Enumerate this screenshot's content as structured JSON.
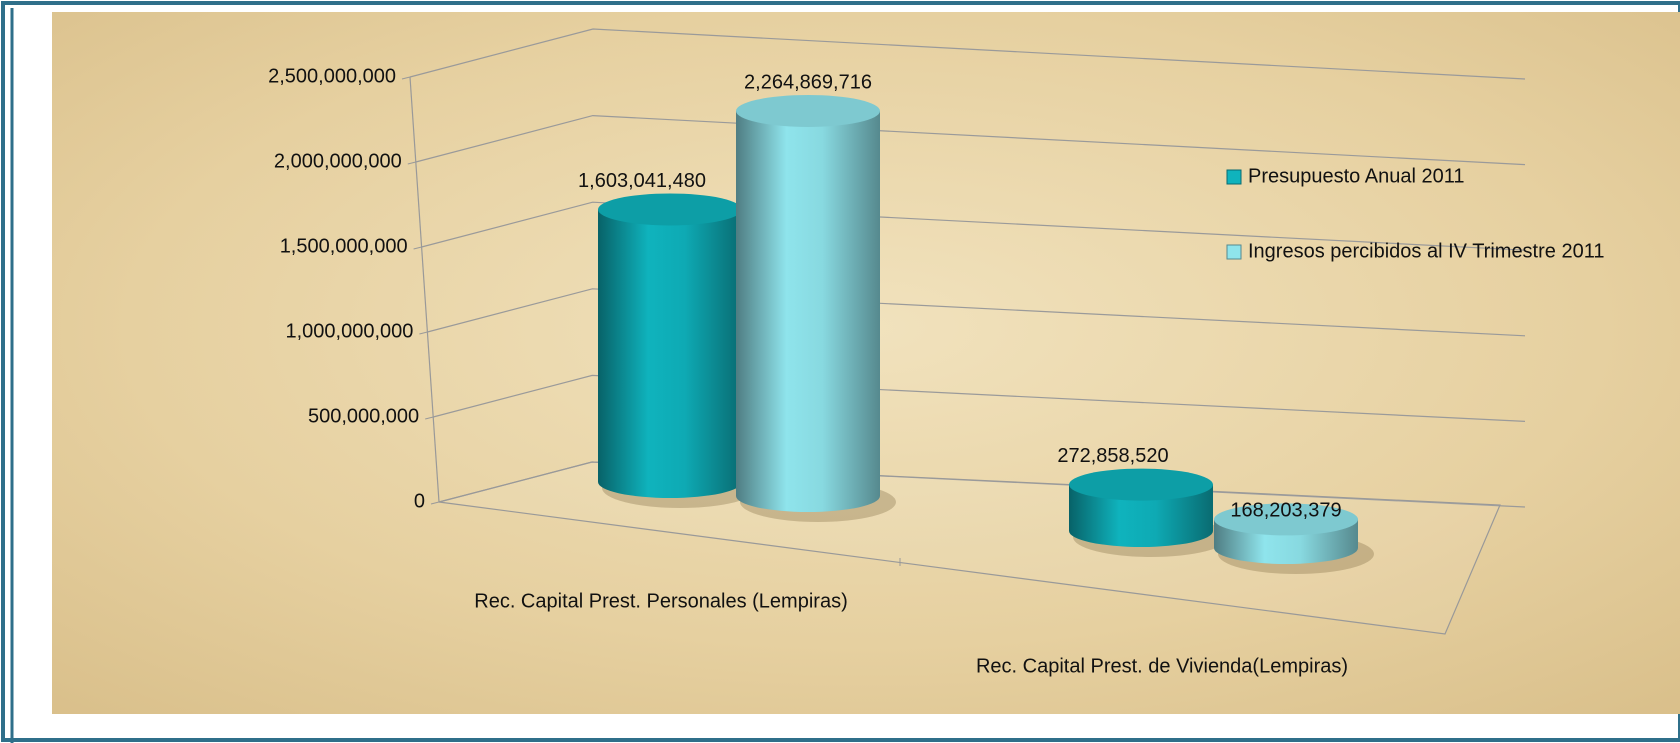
{
  "chart_data": {
    "type": "bar3d",
    "categories": [
      "Rec. Capital Prest. Personales (Lempiras)",
      "Rec. Capital Prest. de Vivienda(Lempiras)"
    ],
    "series": [
      {
        "name": "Presupuesto  Anual 2011",
        "color": "#0fb3bd",
        "values": [
          1603041480,
          272858520
        ],
        "value_labels": [
          "1,603,041,480",
          "272,858,520"
        ]
      },
      {
        "name": "Ingresos percibidos al IV Trimestre 2011",
        "color": "#8fe4ec",
        "values": [
          2264869716,
          168203379
        ],
        "value_labels": [
          "2,264,869,716",
          "168,203,379"
        ]
      }
    ],
    "ylim": [
      0,
      2500000000
    ],
    "yticks": [
      {
        "value": 0,
        "label": "0"
      },
      {
        "value": 500000000,
        "label": "500,000,000"
      },
      {
        "value": 1000000000,
        "label": "1,000,000,000"
      },
      {
        "value": 1500000000,
        "label": "1,500,000,000"
      },
      {
        "value": 2000000000,
        "label": "2,000,000,000"
      },
      {
        "value": 2500000000,
        "label": "2,500,000,000"
      }
    ],
    "grid": true,
    "legend": "right"
  }
}
